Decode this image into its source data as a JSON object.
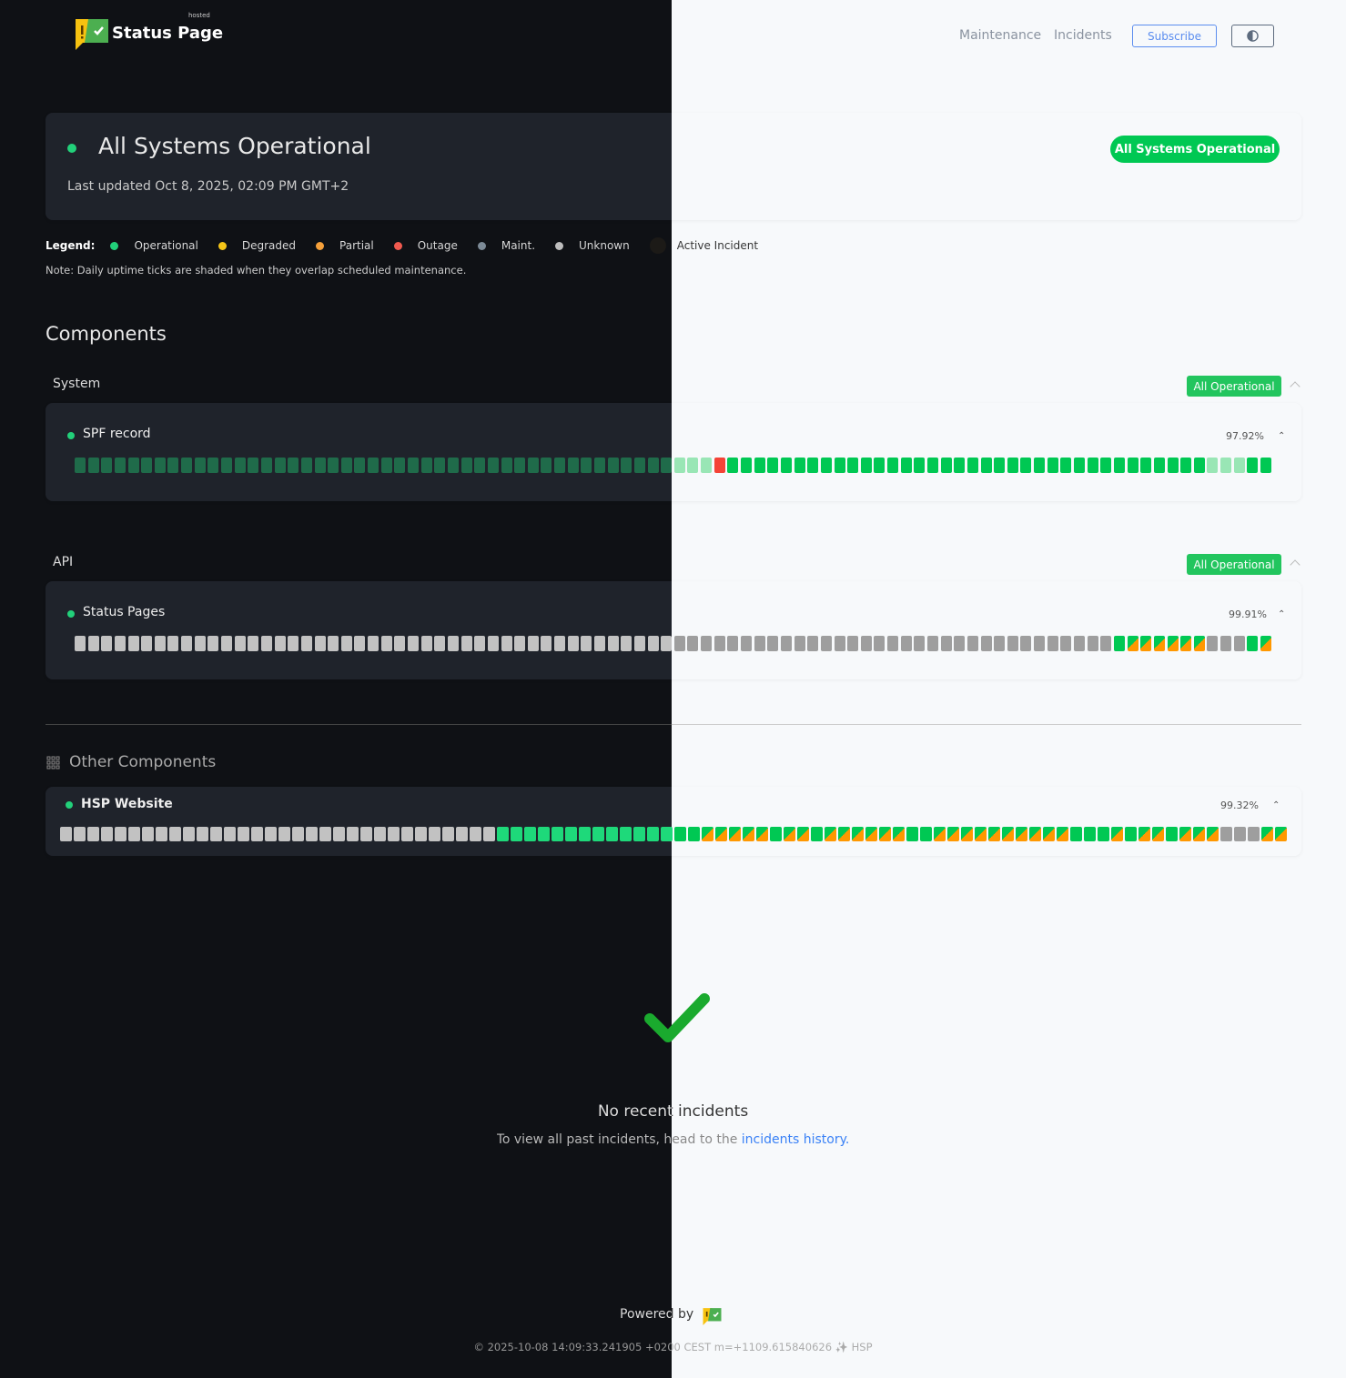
{
  "header": {
    "brand": "Status Page",
    "brand_tag": "hosted",
    "nav": [
      {
        "label": "Maintenance"
      },
      {
        "label": "Incidents"
      }
    ],
    "subscribe_label": "Subscribe",
    "theme_toggle_icon": "half-circle-icon"
  },
  "hero": {
    "title": "All Systems Operational",
    "updated": "Last updated Oct 8, 2025, 02:09 PM GMT+2",
    "badge": "All Systems Operational"
  },
  "legend": {
    "label": "Legend:",
    "items": [
      {
        "label": "Operational",
        "color": "#22d07a"
      },
      {
        "label": "Degraded",
        "color": "#f5c518"
      },
      {
        "label": "Partial",
        "color": "#f5a03a"
      },
      {
        "label": "Outage",
        "color": "#f05a4f"
      },
      {
        "label": "Maint.",
        "color": "#7c8a96"
      },
      {
        "label": "Unknown",
        "color": "#bdbdbd"
      },
      {
        "label": "Active Incident",
        "color": "#1c1a17"
      }
    ],
    "note": "Note: Daily uptime ticks are shaded when they overlap scheduled maintenance."
  },
  "components_title": "Components",
  "groups": [
    {
      "name": "System",
      "badge": "All Operational",
      "components": [
        {
          "name": "SPF record",
          "uptime": "97.92%",
          "days": [
            [
              "shaded",
              48
            ],
            [
              "outage",
              1
            ],
            [
              "op",
              36
            ],
            [
              "shaded",
              3
            ],
            [
              "op",
              2
            ]
          ]
        }
      ]
    },
    {
      "name": "API",
      "badge": "All Operational",
      "components": [
        {
          "name": "Status Pages",
          "uptime": "99.91%",
          "days": [
            [
              "unknown",
              78
            ],
            [
              "op",
              1
            ],
            [
              "partial",
              6
            ],
            [
              "unknown",
              3
            ],
            [
              "op",
              1
            ],
            [
              "partial",
              1
            ]
          ]
        }
      ]
    }
  ],
  "other": {
    "title": "Other Components",
    "components": [
      {
        "name": "HSP Website",
        "uptime": "99.32%",
        "days": [
          [
            "unknown",
            32
          ],
          [
            "op",
            15
          ],
          [
            "partial",
            5
          ],
          [
            "op",
            1
          ],
          [
            "partial",
            2
          ],
          [
            "op",
            1
          ],
          [
            "partial",
            6
          ],
          [
            "op",
            2
          ],
          [
            "partial",
            10
          ],
          [
            "op",
            3
          ],
          [
            "partial",
            1
          ],
          [
            "op",
            1
          ],
          [
            "partial",
            2
          ],
          [
            "op",
            1
          ],
          [
            "partial",
            3
          ],
          [
            "unknown",
            3
          ],
          [
            "partial",
            2
          ]
        ]
      }
    ]
  },
  "incidents": {
    "title": "No recent incidents",
    "text": "To view all past incidents, head to the",
    "link": "incidents history",
    "end": "."
  },
  "footer": {
    "powered": "Powered by",
    "stamp": "© 2025-10-08 14:09:33.241905 +0200 CEST m=+1109.615840626 ✨ HSP"
  },
  "colors": {
    "op_dark": "#1ed97a",
    "op_light": "#00c853",
    "shaded_dark": "#1f6b4a",
    "shaded_light": "#99e6b5",
    "unknown_dark": "#c2c2c2",
    "unknown_light": "#9e9e9e",
    "outage": "#f44336",
    "partial": "#ff9800",
    "accent": "#22c55e",
    "link": "#3b82f6"
  }
}
